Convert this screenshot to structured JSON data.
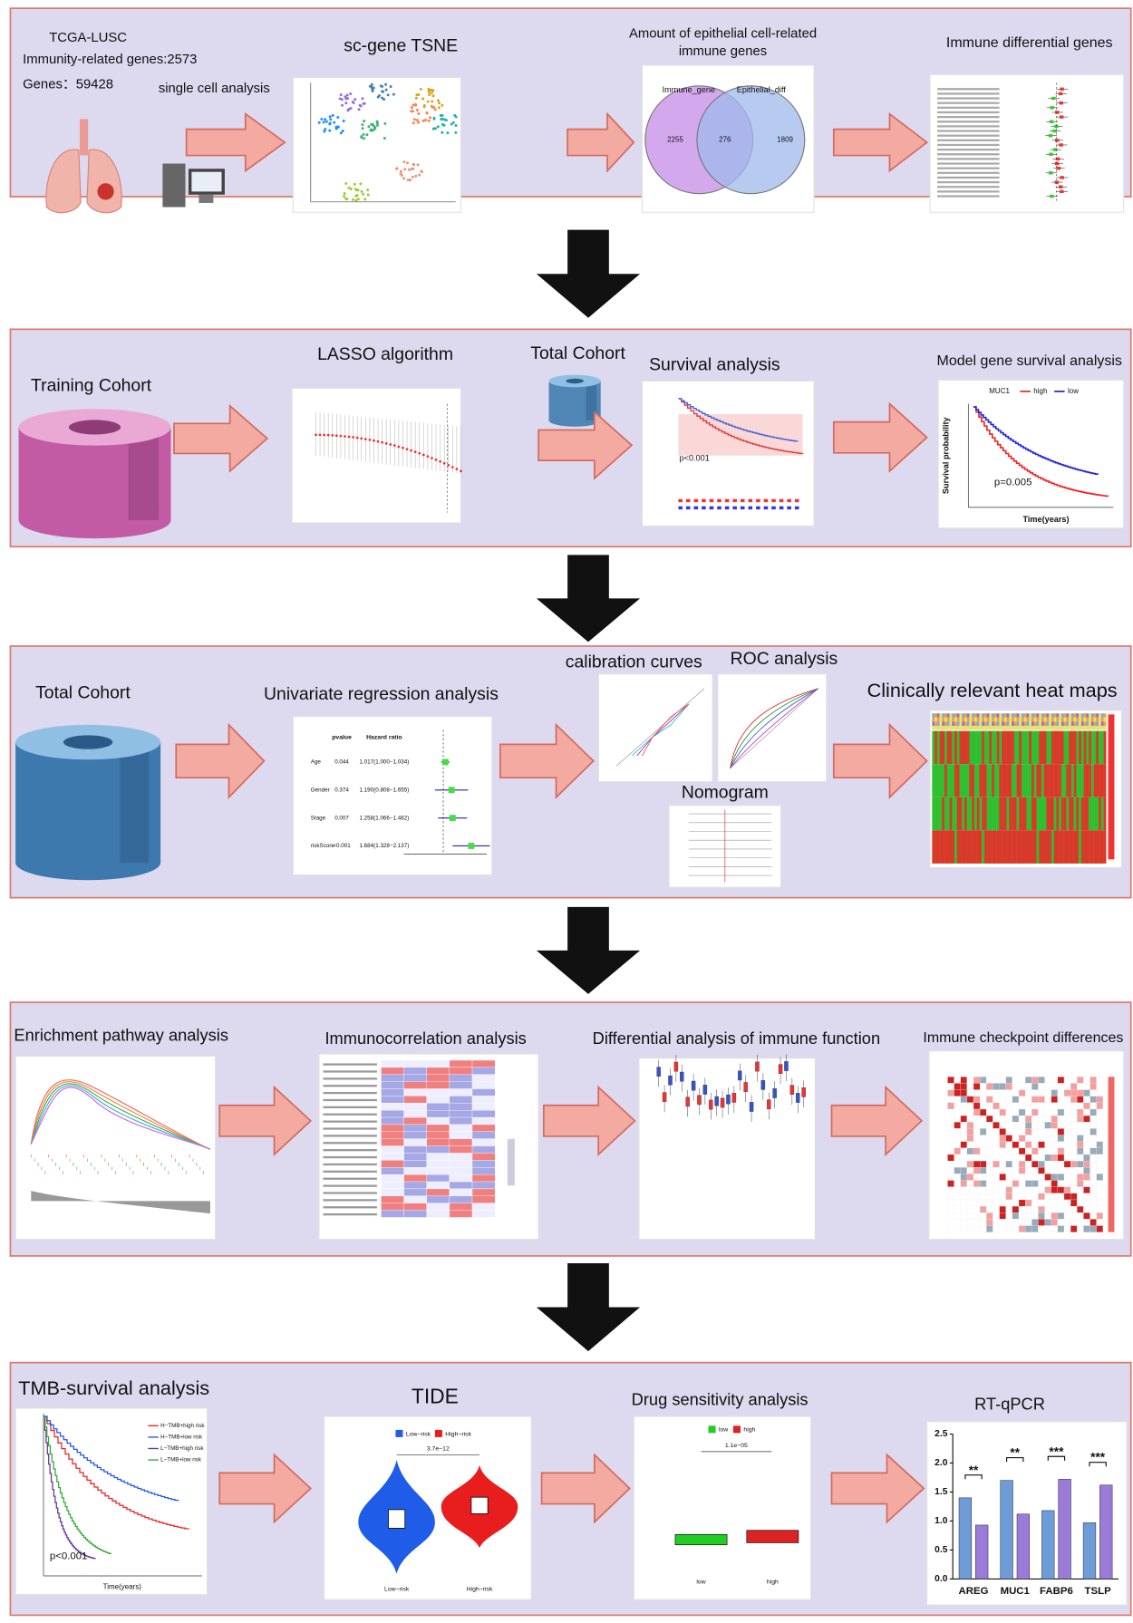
{
  "row1": {
    "cohort": [
      "TCGA-LUSC",
      "Immunity-related genes:2573",
      "Genes：59428"
    ],
    "single_cell": "single cell analysis",
    "tsne": "sc-gene TSNE",
    "venn_title": [
      "Amount of epithelial cell-related",
      "immune genes"
    ],
    "venn_labels": [
      "Immune_gene",
      "Epithelial_diff"
    ],
    "venn_counts": [
      "2255",
      "276",
      "1809"
    ],
    "forest": "Immune differential genes"
  },
  "row2": {
    "training": "Training Cohort",
    "lasso": "LASSO algorithm",
    "total": "Total Cohort",
    "survival": "Survival analysis",
    "survival_p": "p<0.001",
    "model": "Model gene survival analysis",
    "model_gene": "MUC1",
    "model_legend": [
      "high",
      "low"
    ],
    "model_p": "p=0.005",
    "model_xlabel": "Time(years)",
    "model_ylabel": "Survival probability"
  },
  "row3": {
    "total": "Total Cohort",
    "univariate": "Univariate regression analysis",
    "uni_headers": [
      "pvalue",
      "Hazard ratio"
    ],
    "uni_rows": [
      [
        "Age",
        "0.044",
        "1.017(1.000−1.034)"
      ],
      [
        "Gender",
        "0.374",
        "1.190(0.808−1.655)"
      ],
      [
        "Stage",
        "0.007",
        "1.258(1.066−1.482)"
      ],
      [
        "riskScore",
        "<0.001",
        "1.684(1.328−2.137)"
      ]
    ],
    "calibration": "calibration curves",
    "roc": "ROC analysis",
    "nomogram": "Nomogram",
    "heatmap": "Clinically relevant heat maps"
  },
  "row4": {
    "enrichment": "Enrichment pathway analysis",
    "immunocorrelation": "Immunocorrelation analysis",
    "immune_function": "Differential analysis of immune function",
    "checkpoint": "Immune checkpoint differences"
  },
  "row5": {
    "tmb": "TMB-survival analysis",
    "tmb_legend": [
      "H−TMB+high risk",
      "H−TMB+low risk",
      "L−TMB+high risk",
      "L−TMB+low risk"
    ],
    "tmb_p": "p<0.001",
    "tmb_xlabel": "Time(years)",
    "tide": "TIDE",
    "tide_legend": [
      "Low−risk",
      "High−risk"
    ],
    "tide_p": "3.7e−12",
    "drug": "Drug sensitivity analysis",
    "drug_legend": [
      "low",
      "high"
    ],
    "drug_p": "1.1e−05",
    "rtqpcr": {
      "title": "RT-qPCR",
      "categories": [
        "AREG",
        "MUC1",
        "FABP6",
        "TSLP"
      ],
      "significance": [
        "**",
        "**",
        "***",
        "***"
      ],
      "ylim": [
        0,
        2.5
      ],
      "yticks": [
        {
          "value": 0,
          "label": "0.0"
        },
        {
          "value": 0.5,
          "label": "0.5"
        },
        {
          "value": 1,
          "label": "1.0"
        },
        {
          "value": 1.5,
          "label": "1.5"
        },
        {
          "value": 2,
          "label": "2.0"
        },
        {
          "value": 2.5,
          "label": "2.5"
        }
      ],
      "series": [
        {
          "color": "#6d9cd6",
          "values": [
            1.4,
            1.7,
            1.18,
            0.97
          ]
        },
        {
          "color": "#9b7bd8",
          "values": [
            0.93,
            1.12,
            1.72,
            1.62
          ]
        }
      ]
    }
  }
}
